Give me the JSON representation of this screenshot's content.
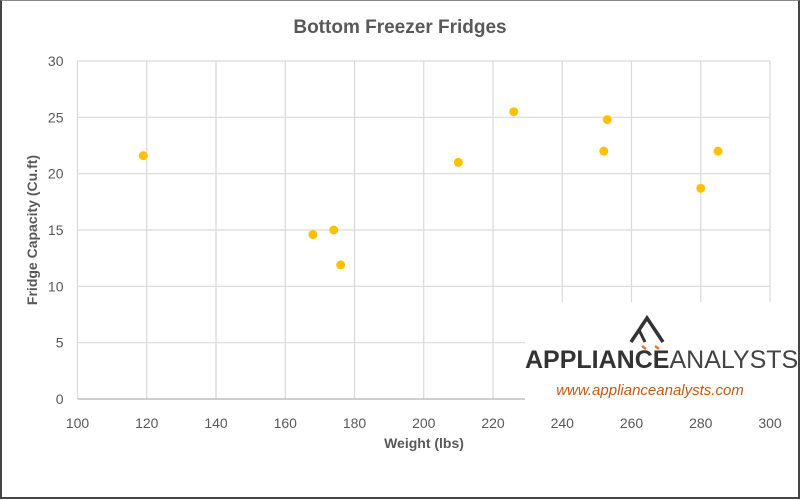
{
  "chart_data": {
    "type": "scatter",
    "title": "Bottom Freezer Fridges",
    "xlabel": "Weight (lbs)",
    "ylabel": "Fridge Capacity (Cu.ft)",
    "xlim": [
      100,
      300
    ],
    "ylim": [
      0,
      30
    ],
    "xticks": [
      100,
      120,
      140,
      160,
      180,
      200,
      220,
      240,
      260,
      280,
      300
    ],
    "yticks": [
      0,
      5,
      10,
      15,
      20,
      25,
      30
    ],
    "grid": true,
    "legend": null,
    "marker_color": "#ffc000",
    "series": [
      {
        "name": "Bottom Freezer Fridges",
        "points": [
          {
            "x": 119,
            "y": 21.6
          },
          {
            "x": 168,
            "y": 14.6
          },
          {
            "x": 174,
            "y": 15.0
          },
          {
            "x": 176,
            "y": 11.9
          },
          {
            "x": 210,
            "y": 21.0
          },
          {
            "x": 226,
            "y": 25.5
          },
          {
            "x": 252,
            "y": 22.0
          },
          {
            "x": 253,
            "y": 24.8
          },
          {
            "x": 280,
            "y": 18.7
          },
          {
            "x": 285,
            "y": 22.0
          }
        ]
      }
    ]
  },
  "watermark": {
    "brand_bold": "APPLIANCE",
    "brand_light": "ANALYSTS",
    "url": "www.applianceanalysts.com",
    "icon": "roof-caret-logo-icon",
    "accent_color": "#e07b39"
  }
}
